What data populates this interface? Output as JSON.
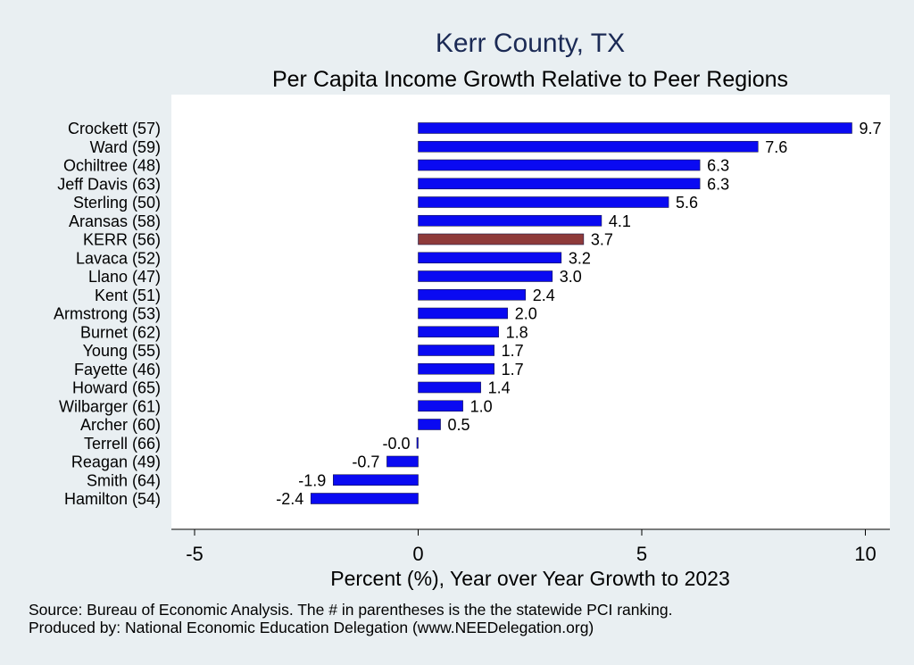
{
  "chart_data": {
    "type": "bar",
    "orientation": "horizontal",
    "title": "Kerr County, TX",
    "subtitle": "Per Capita Income Growth Relative to Peer Regions",
    "xlabel": "Percent (%), Year over Year Growth to 2023",
    "ylabel": "",
    "xlim": [
      -5,
      10
    ],
    "xticks": [
      -5,
      0,
      5,
      10
    ],
    "grid": false,
    "categories": [
      "Crockett (57)",
      "Ward (59)",
      "Ochiltree (48)",
      "Jeff Davis (63)",
      "Sterling (50)",
      "Aransas (58)",
      "KERR (56)",
      "Lavaca (52)",
      "Llano (47)",
      "Kent (51)",
      "Armstrong (53)",
      "Burnet (62)",
      "Young (55)",
      "Fayette (46)",
      "Howard (65)",
      "Wilbarger (61)",
      "Archer (60)",
      "Terrell (66)",
      "Reagan (49)",
      "Smith (64)",
      "Hamilton (54)"
    ],
    "values": [
      9.7,
      7.6,
      6.3,
      6.3,
      5.6,
      4.1,
      3.7,
      3.2,
      3.0,
      2.4,
      2.0,
      1.8,
      1.7,
      1.7,
      1.4,
      1.0,
      0.5,
      -0.02,
      -0.7,
      -1.9,
      -2.4
    ],
    "value_labels": [
      "9.7",
      "7.6",
      "6.3",
      "6.3",
      "5.6",
      "4.1",
      "3.7",
      "3.2",
      "3.0",
      "2.4",
      "2.0",
      "1.8",
      "1.7",
      "1.7",
      "1.4",
      "1.0",
      "0.5",
      "-0.0",
      "-0.7",
      "-1.9",
      "-2.4"
    ],
    "highlight_category": "KERR (56)",
    "colors": {
      "bar": "#0a0af2",
      "highlight": "#8e3a3a",
      "title": "#1b2a55",
      "plot_bg": "#ffffff",
      "page_bg": "#e9eff2"
    }
  },
  "footer": {
    "source": "Source: Bureau of Economic Analysis. The # in parentheses is the the statewide PCI ranking.",
    "produced_by": "Produced by: National Economic Education Delegation (www.NEEDelegation.org)"
  }
}
